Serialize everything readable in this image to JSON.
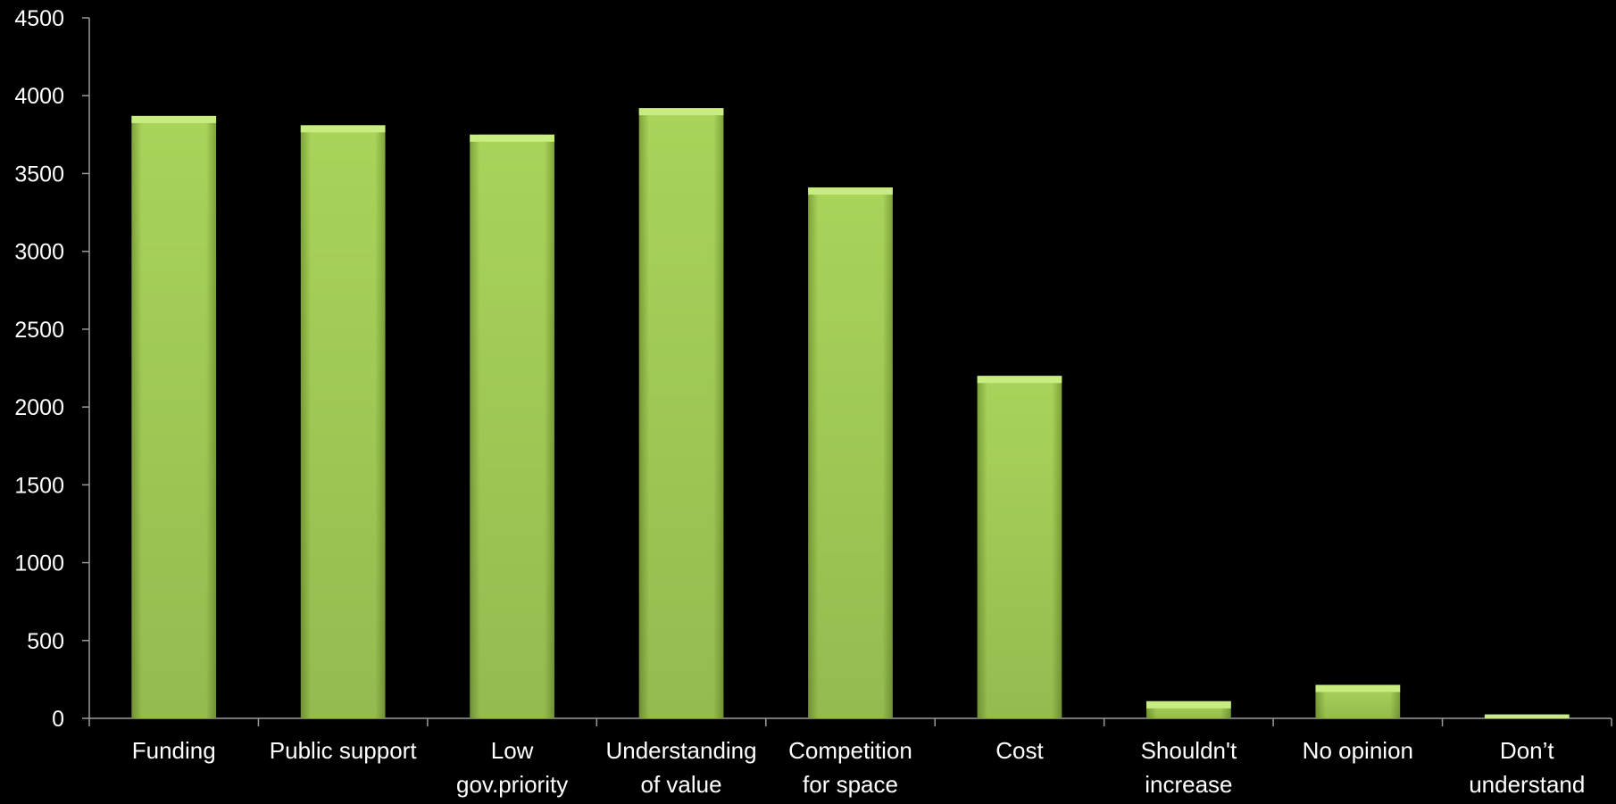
{
  "chart_data": {
    "type": "bar",
    "title": "",
    "xlabel": "",
    "ylabel": "",
    "ylim": [
      0,
      4500
    ],
    "yticks": [
      0,
      500,
      1000,
      1500,
      2000,
      2500,
      3000,
      3500,
      4000,
      4500
    ],
    "grid": false,
    "legend": "none",
    "categories": [
      [
        "Funding"
      ],
      [
        "Public support"
      ],
      [
        "Low",
        "gov.priority"
      ],
      [
        "Understanding",
        "of value"
      ],
      [
        "Competition",
        "for space"
      ],
      [
        "Cost"
      ],
      [
        "Shouldn't",
        "increase"
      ],
      [
        "No opinion"
      ],
      [
        "Don’t",
        "understand"
      ]
    ],
    "values": [
      3870,
      3810,
      3750,
      3920,
      3410,
      2200,
      110,
      215,
      25
    ],
    "colors": {
      "background": "#000000",
      "bar_light": "#a8d45a",
      "bar_dark": "#7ea33a",
      "bar_top": "#c8ec80",
      "axis": "#9a9a9a",
      "text": "#ffffff"
    }
  }
}
